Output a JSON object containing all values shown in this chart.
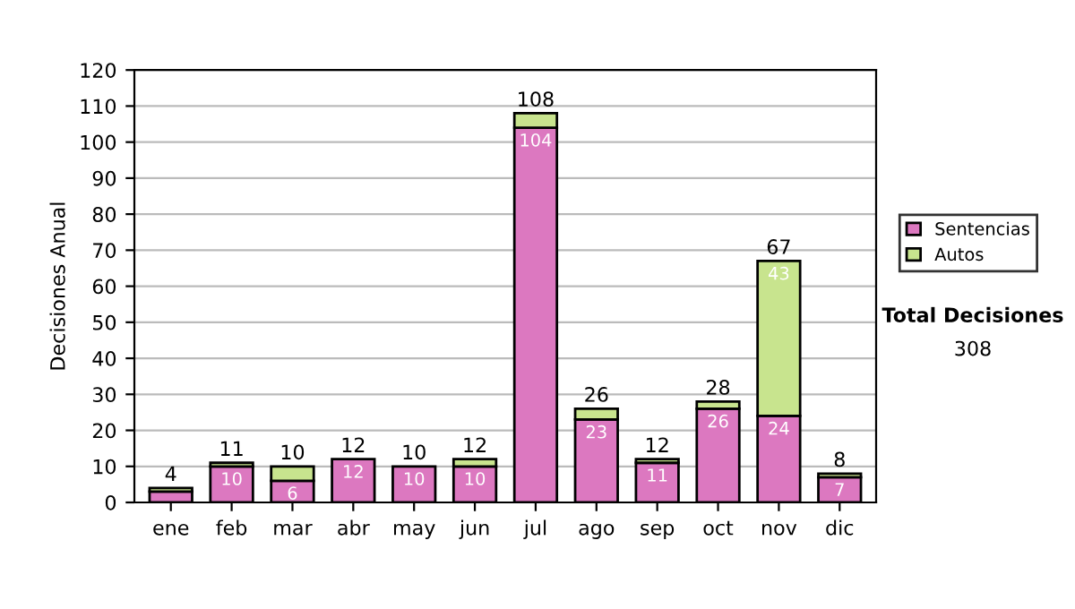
{
  "chart_data": {
    "type": "bar",
    "stacked": true,
    "ylabel": "Decisiones Anual",
    "categories": [
      "ene",
      "feb",
      "mar",
      "abr",
      "may",
      "jun",
      "jul",
      "ago",
      "sep",
      "oct",
      "nov",
      "dic"
    ],
    "series": [
      {
        "name": "Sentencias",
        "color": "#dc78c0",
        "values": [
          3,
          10,
          6,
          12,
          10,
          10,
          104,
          23,
          11,
          26,
          24,
          7
        ],
        "value_labels": [
          null,
          "10",
          "6",
          "12",
          "10",
          "10",
          "104",
          "23",
          "11",
          "26",
          "24",
          "7"
        ]
      },
      {
        "name": "Autos",
        "color": "#c8e48e",
        "values": [
          1,
          1,
          4,
          null,
          null,
          2,
          4,
          3,
          1,
          2,
          43,
          1
        ],
        "value_labels": [
          null,
          null,
          null,
          null,
          null,
          null,
          null,
          null,
          null,
          null,
          "43",
          null
        ]
      }
    ],
    "totals": [
      "4",
      "11",
      "10",
      "12",
      "10",
      "12",
      "108",
      "26",
      "12",
      "28",
      "67",
      "8"
    ],
    "ylim": [
      0,
      120
    ],
    "yticks": [
      0,
      10,
      20,
      30,
      40,
      50,
      60,
      70,
      80,
      90,
      100,
      110,
      120
    ],
    "grid": "y",
    "legend": "right",
    "annotations": [
      "Total Decisiones",
      "308"
    ]
  }
}
